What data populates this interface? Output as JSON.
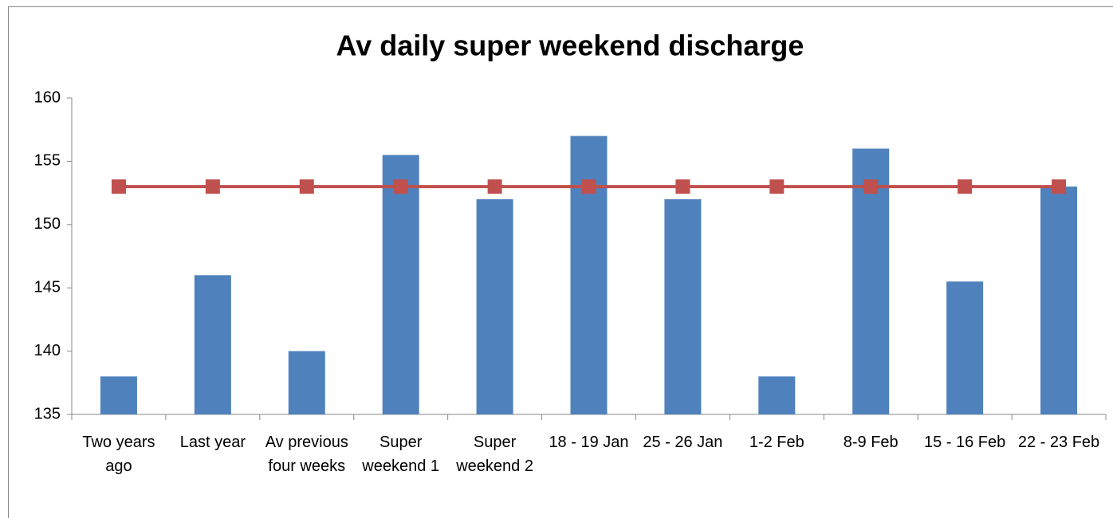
{
  "chart_data": {
    "type": "bar",
    "title": "Av daily super weekend discharge",
    "categories": [
      "Two years ago",
      "Last year",
      "Av previous four weeks",
      "Super weekend 1",
      "Super weekend 2",
      "18 - 19 Jan",
      "25 - 26 Jan",
      "1-2 Feb",
      "8-9 Feb",
      "15 - 16 Feb",
      "22 - 23 Feb"
    ],
    "series": [
      {
        "type": "bar",
        "color": "#4f81bd",
        "values": [
          138,
          146,
          140,
          155.5,
          152,
          157,
          152,
          138,
          156,
          145.5,
          153
        ]
      },
      {
        "type": "line",
        "color": "#c0504d",
        "values": [
          153,
          153,
          153,
          153,
          153,
          153,
          153,
          153,
          153,
          153,
          153
        ]
      }
    ],
    "ylim": [
      135,
      160
    ],
    "yticks": [
      135,
      140,
      145,
      150,
      155,
      160
    ],
    "grid": false
  }
}
